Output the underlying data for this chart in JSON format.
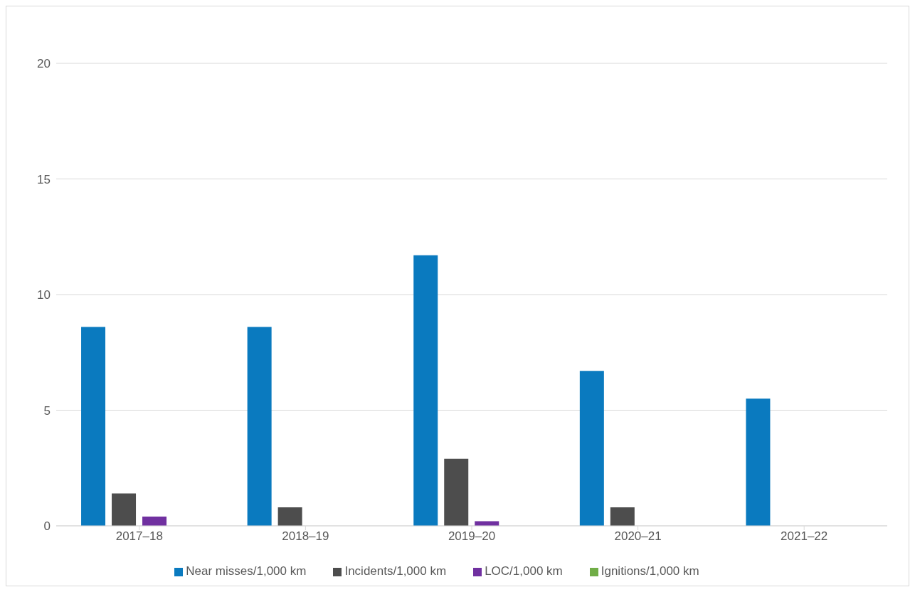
{
  "chart_data": {
    "type": "bar",
    "categories": [
      "2017–18",
      "2018–19",
      "2019–20",
      "2020–21",
      "2021–22"
    ],
    "series": [
      {
        "name": "Near misses/1,000 km",
        "color": "#0a7abf",
        "values": [
          8.6,
          8.6,
          11.7,
          6.7,
          5.5
        ]
      },
      {
        "name": "Incidents/1,000 km",
        "color": "#4d4d4d",
        "values": [
          1.4,
          0.8,
          2.9,
          0.8,
          0
        ]
      },
      {
        "name": "LOC/1,000 km",
        "color": "#7030a0",
        "values": [
          0.4,
          0,
          0.2,
          0,
          0
        ]
      },
      {
        "name": "Ignitions/1,000 km",
        "color": "#70ad47",
        "values": [
          0,
          0,
          0,
          0,
          0
        ]
      }
    ],
    "ylim": [
      0,
      20
    ],
    "yticks": [
      0,
      5,
      10,
      15,
      20
    ],
    "grid": "y",
    "legend": "bottom"
  }
}
